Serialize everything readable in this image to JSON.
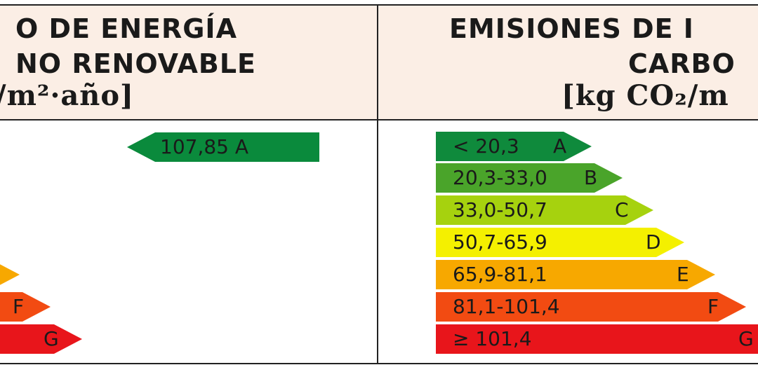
{
  "left_panel": {
    "header_line1": "O DE ENERGÍA",
    "header_line2": "NO RENOVABLE",
    "header_unit": "/m²·año]",
    "rating_value": "107,85 A",
    "rating_color": "#0a8a3c",
    "scale_letters": [
      "F",
      "G"
    ],
    "scale_colors": [
      "#f7a800",
      "#f24b12",
      "#e8151b"
    ]
  },
  "right_panel": {
    "header_line1": "EMISIONES DE I",
    "header_line2": "CARBO",
    "header_unit": "[kg CO₂/m",
    "scale": [
      {
        "range": "< 20,3",
        "letter": "A",
        "color": "#0f8a3c"
      },
      {
        "range": "20,3-33,0",
        "letter": "B",
        "color": "#4aa42a"
      },
      {
        "range": "33,0-50,7",
        "letter": "C",
        "color": "#a6d20e"
      },
      {
        "range": "50,7-65,9",
        "letter": "D",
        "color": "#f4f000"
      },
      {
        "range": "65,9-81,1",
        "letter": "E",
        "color": "#f7a800"
      },
      {
        "range": "81,1-101,4",
        "letter": "F",
        "color": "#f24b12"
      },
      {
        "range": "≥ 101,4",
        "letter": "G",
        "color": "#e8151b"
      }
    ]
  }
}
